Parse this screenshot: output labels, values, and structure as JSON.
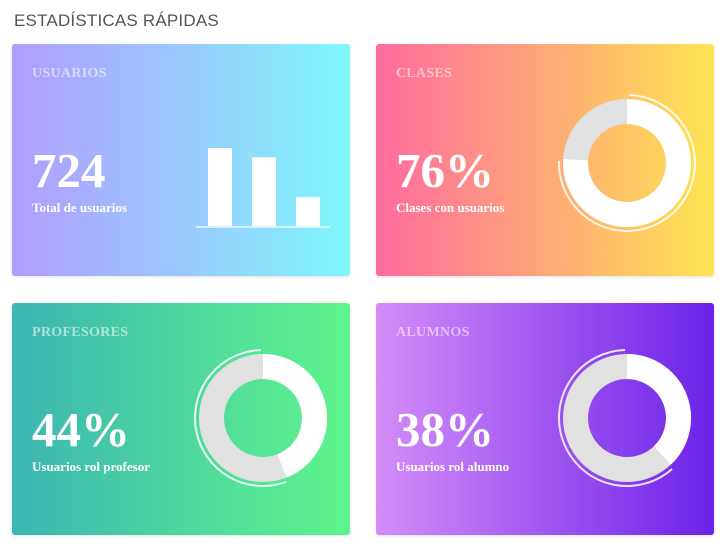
{
  "section_title": "ESTADÍSTICAS RÁPIDAS",
  "cards": [
    {
      "title": "USUARIOS",
      "value": "724",
      "caption": "Total de usuarios",
      "gradient": [
        "#b29cff",
        "#80f7fb"
      ],
      "chart": {
        "type": "bar",
        "values": [
          1.0,
          0.88,
          0.37
        ]
      }
    },
    {
      "title": "CLASES",
      "value": "76%",
      "caption": "Clases con usuarios",
      "gradient": [
        "#ff6b9e",
        "#fde551"
      ],
      "chart": {
        "type": "donut",
        "percent": 76
      }
    },
    {
      "title": "PROFESORES",
      "value": "44%",
      "caption": "Usuarios rol profesor",
      "gradient": [
        "#3cb6b2",
        "#5ff58b"
      ],
      "chart": {
        "type": "donut",
        "percent": 44
      }
    },
    {
      "title": "ALUMNOS",
      "value": "38%",
      "caption": "Usuarios rol alumno",
      "gradient": [
        "#d58cf8",
        "#6b22e8"
      ],
      "chart": {
        "type": "donut",
        "percent": 38
      }
    }
  ],
  "colors": {
    "donut_filled": "#ffffff",
    "donut_rest": "#e1e1e1",
    "bars": "#ffffff"
  }
}
